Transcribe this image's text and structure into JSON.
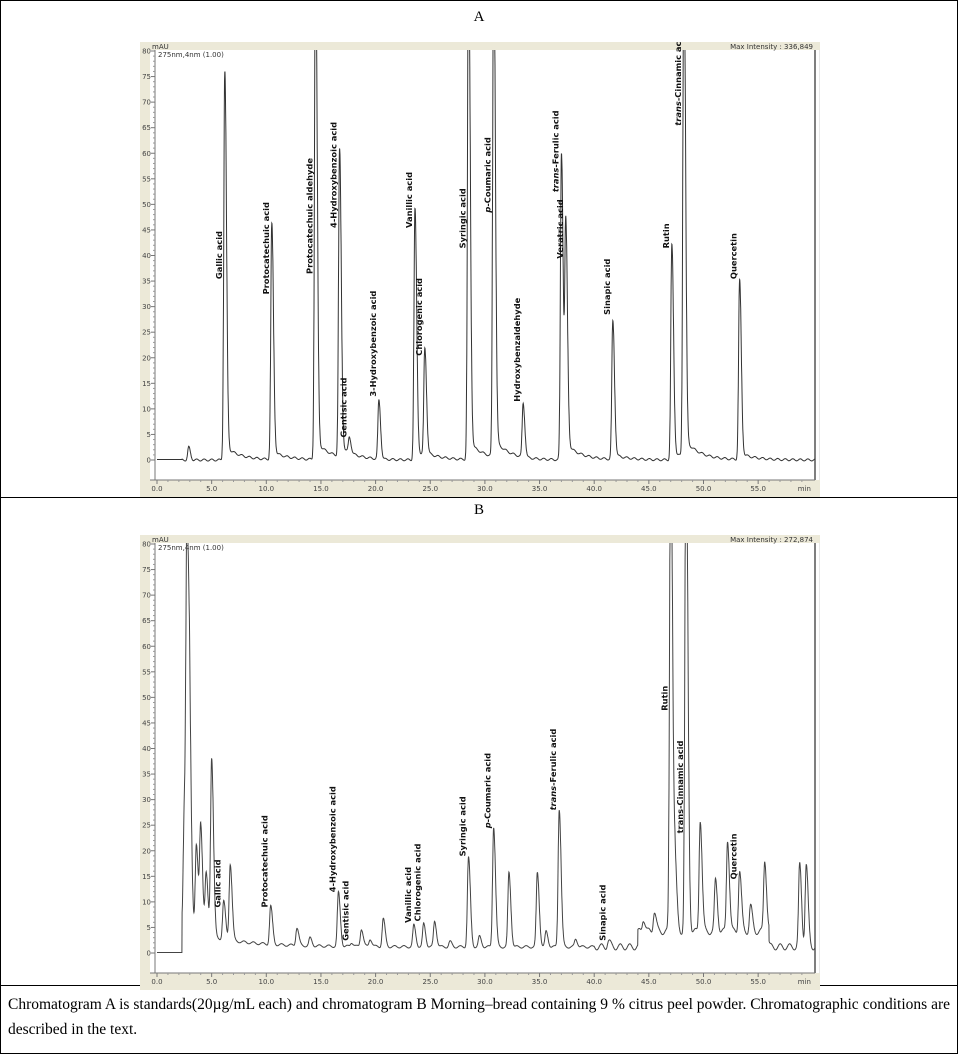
{
  "panels": [
    {
      "title": "A",
      "unit": "mAU",
      "channel": "275nm,4nm (1.00)",
      "max_intensity": "Max Intensity : 336,849"
    },
    {
      "title": "B",
      "unit": "mAU",
      "channel": "275nm,4nm (1.00)",
      "max_intensity": "Max Intensity : 272,874"
    }
  ],
  "caption": "Chromatogram A is standards(20µg/mL each) and chromatogram B Morning–bread containing 9 % citrus peel powder. Chromatographic conditions are described in the text.",
  "chart_data": [
    {
      "type": "line",
      "title": "A",
      "xlabel": "min",
      "ylabel": "mAU",
      "xlim": [
        0,
        60
      ],
      "ylim": [
        0,
        80
      ],
      "x_ticks": [
        "0.0",
        "5.0",
        "10.0",
        "15.0",
        "20.0",
        "25.0",
        "30.0",
        "35.0",
        "40.0",
        "45.0",
        "50.0",
        "55.0"
      ],
      "y_ticks": [
        "0",
        "5",
        "10",
        "15",
        "20",
        "25",
        "30",
        "35",
        "40",
        "45",
        "50",
        "55",
        "60",
        "65",
        "70",
        "75",
        "80"
      ],
      "line_color": "#333333",
      "peaks": [
        {
          "rt": 2.9,
          "height": 2.5
        },
        {
          "rt": 6.2,
          "height": 76,
          "label": "Gallic acid"
        },
        {
          "rt": 10.5,
          "height": 46,
          "label": "Protocatechuic acid"
        },
        {
          "rt": 14.5,
          "height": 100,
          "label": "Protocatechuic aldehyde"
        },
        {
          "rt": 16.7,
          "height": 60,
          "label": "4-Hydroxybenzoic acid"
        },
        {
          "rt": 17.6,
          "height": 3,
          "label": "Gentisic acid"
        },
        {
          "rt": 20.3,
          "height": 11.5,
          "label": "3-Hydroxybenzoic acid"
        },
        {
          "rt": 23.6,
          "height": 49,
          "label": "Vanillic acid"
        },
        {
          "rt": 24.5,
          "height": 21,
          "label": "Chlorogenic acid"
        },
        {
          "rt": 28.5,
          "height": 100,
          "label": "Syringic acid"
        },
        {
          "rt": 30.8,
          "height": 100,
          "label": "p-Coumaric acid",
          "italic": "p"
        },
        {
          "rt": 33.5,
          "height": 10.5,
          "label": "Hydroxybenzaldehyde"
        },
        {
          "rt": 37.0,
          "height": 60,
          "label": "trans-Ferulic acid",
          "italic": "trans"
        },
        {
          "rt": 37.4,
          "height": 44,
          "label": "Veratric acid"
        },
        {
          "rt": 41.7,
          "height": 27,
          "label": "Sinapic acid"
        },
        {
          "rt": 47.1,
          "height": 42,
          "label": "Rutin"
        },
        {
          "rt": 48.2,
          "height": 100,
          "label": "trans-Cinnamic acid",
          "italic": "trans"
        },
        {
          "rt": 53.3,
          "height": 35,
          "label": "Quercetin"
        }
      ]
    },
    {
      "type": "line",
      "title": "B",
      "xlabel": "min",
      "ylabel": "mAU",
      "xlim": [
        0,
        60
      ],
      "ylim": [
        0,
        80
      ],
      "x_ticks": [
        "0.0",
        "5.0",
        "10.0",
        "15.0",
        "20.0",
        "25.0",
        "30.0",
        "35.0",
        "40.0",
        "45.0",
        "50.0",
        "55.0"
      ],
      "y_ticks": [
        "0",
        "5",
        "10",
        "15",
        "20",
        "25",
        "30",
        "35",
        "40",
        "45",
        "50",
        "55",
        "60",
        "65",
        "70",
        "75",
        "80"
      ],
      "line_color": "#444444",
      "peaks": [
        {
          "rt": 2.5,
          "height": 23
        },
        {
          "rt": 2.75,
          "height": 74
        },
        {
          "rt": 3.0,
          "height": 28
        },
        {
          "rt": 3.6,
          "height": 17
        },
        {
          "rt": 4.0,
          "height": 21
        },
        {
          "rt": 4.5,
          "height": 12
        },
        {
          "rt": 5.0,
          "height": 35
        },
        {
          "rt": 6.1,
          "height": 7.5,
          "label": "Gallic acid"
        },
        {
          "rt": 6.7,
          "height": 15
        },
        {
          "rt": 10.4,
          "height": 7.5,
          "label": "Protocatechuic acid"
        },
        {
          "rt": 12.8,
          "height": 3.5
        },
        {
          "rt": 14.0,
          "height": 1.5
        },
        {
          "rt": 16.6,
          "height": 10.5,
          "label": "4-Hydroxybenzoic acid"
        },
        {
          "rt": 17.8,
          "height": 0.8,
          "label": "Gentisic acid"
        },
        {
          "rt": 18.7,
          "height": 3.5
        },
        {
          "rt": 19.5,
          "height": 1.5
        },
        {
          "rt": 20.7,
          "height": 5.5
        },
        {
          "rt": 23.5,
          "height": 4.2,
          "label": "Vanillic acid"
        },
        {
          "rt": 24.4,
          "height": 4.5,
          "label": "Chlorogenic acid"
        },
        {
          "rt": 25.4,
          "height": 5
        },
        {
          "rt": 26.8,
          "height": 1
        },
        {
          "rt": 28.5,
          "height": 17.5,
          "label": "Syringic acid"
        },
        {
          "rt": 29.5,
          "height": 2
        },
        {
          "rt": 30.8,
          "height": 23.5,
          "label": "p-Coumaric acid",
          "italic": "p"
        },
        {
          "rt": 32.2,
          "height": 14.5
        },
        {
          "rt": 34.8,
          "height": 14.5
        },
        {
          "rt": 35.6,
          "height": 3
        },
        {
          "rt": 36.8,
          "height": 27,
          "label": "trans-Ferulic acid",
          "italic": "trans"
        },
        {
          "rt": 38.3,
          "height": 1.5
        },
        {
          "rt": 41.3,
          "height": 1.2,
          "label": "Sinapic acid"
        },
        {
          "rt": 44.5,
          "height": 2.5
        },
        {
          "rt": 45.5,
          "height": 4
        },
        {
          "rt": 47.0,
          "height": 100,
          "label": "Rutin"
        },
        {
          "rt": 47.4,
          "height": 12
        },
        {
          "rt": 48.4,
          "height": 100,
          "label": "trans-Cinnamic acid"
        },
        {
          "rt": 49.7,
          "height": 22
        },
        {
          "rt": 51.1,
          "height": 10
        },
        {
          "rt": 52.2,
          "height": 18
        },
        {
          "rt": 53.3,
          "height": 12,
          "label": "Quercetin"
        },
        {
          "rt": 54.3,
          "height": 5
        },
        {
          "rt": 55.6,
          "height": 14
        },
        {
          "rt": 58.8,
          "height": 16
        },
        {
          "rt": 59.4,
          "height": 16
        }
      ]
    }
  ]
}
